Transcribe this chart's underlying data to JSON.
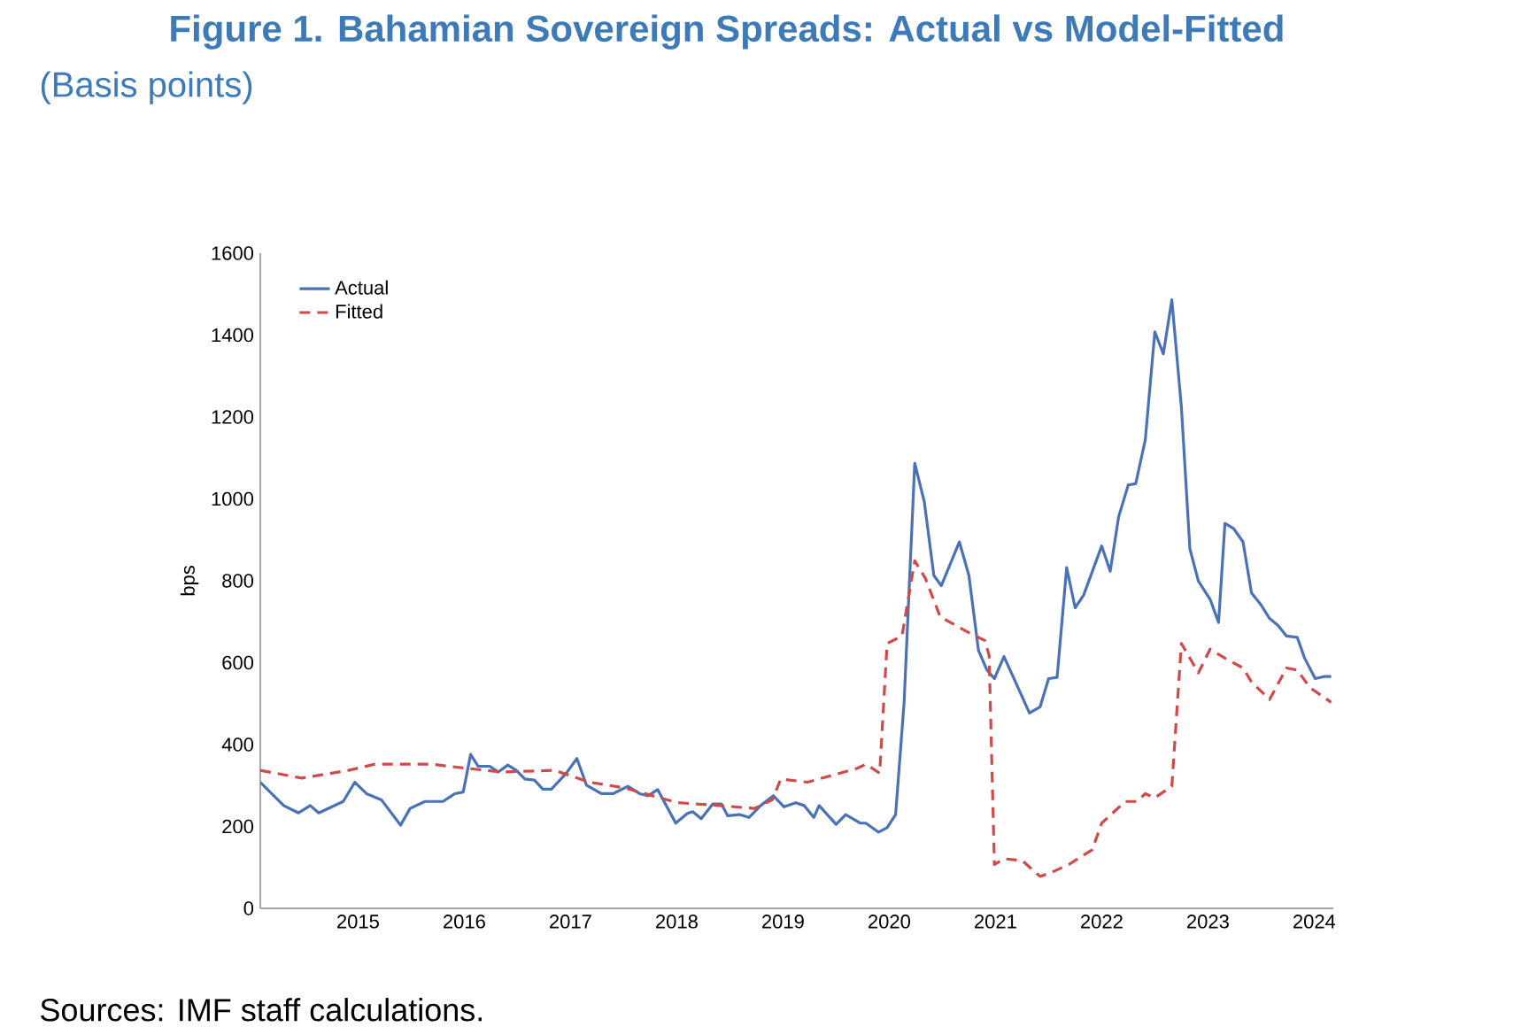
{
  "chart_data": {
    "type": "line",
    "title": "Figure 1. Bahamian Sovereign Spreads: Actual vs Model-Fitted",
    "subtitle": "(Basis points)",
    "ylabel": "bps",
    "xlim": [
      2014.08,
      2024.18
    ],
    "xticks": [
      2015,
      2016,
      2017,
      2018,
      2019,
      2020,
      2021,
      2022,
      2023,
      2024
    ],
    "ylim": [
      0,
      1600
    ],
    "yticks": [
      0,
      200,
      400,
      600,
      800,
      1000,
      1200,
      1400,
      1600
    ],
    "grid": false,
    "legend": "top left",
    "marker": "none",
    "annotations": [
      "Sources: IMF staff calculations."
    ],
    "series": [
      {
        "name": "Actual",
        "color": "#4a72b5",
        "line_style": "solid",
        "x": [
          2014.08,
          2014.3,
          2014.44,
          2014.55,
          2014.63,
          2014.86,
          2014.97,
          2015.08,
          2015.22,
          2015.4,
          2015.49,
          2015.63,
          2015.8,
          2015.91,
          2015.99,
          2016.06,
          2016.13,
          2016.24,
          2016.32,
          2016.41,
          2016.49,
          2016.57,
          2016.66,
          2016.74,
          2016.82,
          2016.96,
          2017.06,
          2017.15,
          2017.29,
          2017.4,
          2017.54,
          2017.65,
          2017.73,
          2017.82,
          2017.99,
          2018.1,
          2018.15,
          2018.23,
          2018.34,
          2018.42,
          2018.48,
          2018.59,
          2018.68,
          2018.79,
          2018.91,
          2019.01,
          2019.12,
          2019.2,
          2019.29,
          2019.34,
          2019.5,
          2019.59,
          2019.73,
          2019.78,
          2019.9,
          2019.98,
          2020.06,
          2020.14,
          2020.24,
          2020.33,
          2020.42,
          2020.49,
          2020.66,
          2020.75,
          2020.84,
          2020.92,
          2020.99,
          2021.08,
          2021.2,
          2021.32,
          2021.42,
          2021.5,
          2021.58,
          2021.67,
          2021.75,
          2021.83,
          2022.0,
          2022.08,
          2022.16,
          2022.25,
          2022.32,
          2022.41,
          2022.5,
          2022.58,
          2022.66,
          2022.75,
          2022.83,
          2022.91,
          2023.02,
          2023.1,
          2023.16,
          2023.24,
          2023.33,
          2023.41,
          2023.5,
          2023.58,
          2023.66,
          2023.74,
          2023.84,
          2023.91,
          2024.01,
          2024.09,
          2024.16
        ],
        "values": [
          308,
          251,
          233,
          251,
          233,
          261,
          308,
          280,
          265,
          203,
          244,
          261,
          261,
          280,
          284,
          376,
          347,
          347,
          333,
          350,
          337,
          316,
          313,
          291,
          291,
          330,
          366,
          301,
          280,
          280,
          298,
          280,
          275,
          290,
          208,
          232,
          236,
          219,
          255,
          255,
          226,
          229,
          222,
          251,
          275,
          248,
          258,
          251,
          222,
          251,
          205,
          229,
          208,
          208,
          186,
          197,
          229,
          503,
          1087,
          993,
          813,
          788,
          895,
          813,
          630,
          582,
          561,
          615,
          546,
          477,
          492,
          561,
          564,
          832,
          734,
          765,
          885,
          823,
          957,
          1034,
          1037,
          1144,
          1408,
          1354,
          1486,
          1224,
          878,
          799,
          755,
          698,
          940,
          928,
          895,
          770,
          741,
          708,
          691,
          665,
          662,
          611,
          561,
          566,
          566
        ]
      },
      {
        "name": "Fitted",
        "color": "#d04a4a",
        "line_style": "dashed",
        "x": [
          2014.08,
          2014.47,
          2014.91,
          2015.16,
          2015.69,
          2016.02,
          2016.35,
          2016.85,
          2017.18,
          2017.51,
          2017.84,
          2018.01,
          2018.4,
          2018.73,
          2018.9,
          2018.98,
          2019.23,
          2019.7,
          2019.78,
          2019.91,
          2019.98,
          2020.12,
          2020.24,
          2020.34,
          2020.48,
          2020.73,
          2020.9,
          2020.94,
          2020.99,
          2021.08,
          2021.25,
          2021.42,
          2021.53,
          2021.69,
          2021.91,
          2022.0,
          2022.22,
          2022.33,
          2022.41,
          2022.5,
          2022.66,
          2022.75,
          2022.91,
          2023.02,
          2023.16,
          2023.33,
          2023.41,
          2023.58,
          2023.74,
          2023.84,
          2023.96,
          2024.16
        ],
        "values": [
          337,
          318,
          337,
          352,
          352,
          342,
          333,
          337,
          308,
          294,
          270,
          258,
          251,
          244,
          265,
          316,
          308,
          342,
          352,
          330,
          647,
          665,
          849,
          806,
          712,
          676,
          654,
          618,
          107,
          121,
          117,
          78,
          88,
          107,
          143,
          208,
          261,
          261,
          280,
          270,
          298,
          647,
          575,
          633,
          611,
          587,
          553,
          510,
          587,
          582,
          539,
          503
        ]
      }
    ]
  }
}
